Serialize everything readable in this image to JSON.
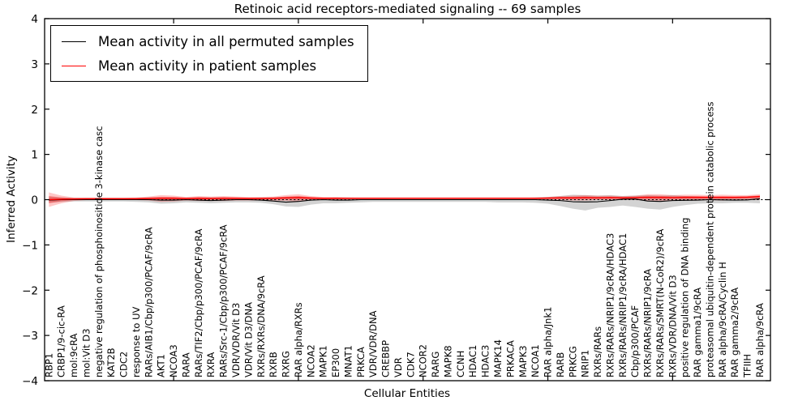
{
  "figure": {
    "title": "Retinoic acid receptors-mediated signaling -- 69 samples",
    "xlabel": "Cellular Entities",
    "ylabel": "Inferred Activity"
  },
  "legend": {
    "entries": [
      {
        "label": "Mean activity in all permuted samples",
        "color": "#000000"
      },
      {
        "label": "Mean activity in patient samples",
        "color": "#ff0000"
      }
    ]
  },
  "chart_data": {
    "type": "line",
    "title": "Retinoic acid receptors-mediated signaling -- 69 samples",
    "xlabel": "Cellular Entities",
    "ylabel": "Inferred Activity",
    "ylim": [
      -4,
      4
    ],
    "yticks": [
      -4,
      -3,
      -2,
      -1,
      0,
      1,
      2,
      3,
      4
    ],
    "ytick_labels": [
      "−4",
      "−3",
      "−2",
      "−1",
      "0",
      "1",
      "2",
      "3",
      "4"
    ],
    "x_major_tick_indices": [
      10,
      20,
      30,
      40,
      50
    ],
    "grid": false,
    "legend_position": "upper left",
    "zero_line": {
      "style": "dashed",
      "color": "#000000",
      "y": 0
    },
    "colors": {
      "permuted_line": "#000000",
      "patient_line": "#ff0000",
      "permuted_band": "rgba(128,128,128,0.35)",
      "patient_band": "rgba(255,0,0,0.22)",
      "patient_band_inner": "rgba(255,0,0,0.30)"
    },
    "categories": [
      "RBP1",
      "CRBP1/9-cic-RA",
      "mol:9cRA",
      "mol:Vit D3",
      "negative regulation of phosphoinositide 3-kinase casc",
      "KAT2B",
      "CDC2",
      "response to UV",
      "RARs/AIB1/Cbp/p300/PCAF/9cRA",
      "AKT1",
      "NCOA3",
      "RARA",
      "RARs/TIF2/Cbp/p300/PCAF/9cRA",
      "RXRA",
      "RARs/Src-1/Cbp/p300/PCAF/9cRA",
      "VDR/VDR/Vit D3",
      "VDR/Vit D3/DNA",
      "RXRs/RXRs/DNA/9cRA",
      "RXRB",
      "RXRG",
      "RAR alpha/RXRs",
      "NCOA2",
      "MAPK1",
      "EP300",
      "MNAT1",
      "PRKCA",
      "VDR/VDR/DNA",
      "CREBBP",
      "VDR",
      "CDK7",
      "NCOR2",
      "RARG",
      "MAPK8",
      "CCNH",
      "HDAC1",
      "HDAC3",
      "MAPK14",
      "PRKACA",
      "MAPK3",
      "NCOA1",
      "RAR alpha/Jnk1",
      "RARB",
      "PRKCG",
      "NRIP1",
      "RXRs/RARs",
      "RXRs/RARs/NRIP1/9cRA/HDAC3",
      "RXRs/RARs/NRIP1/9cRA/HDAC1",
      "Cbp/p300/PCAF",
      "RXRs/RARs/NRIP1/9cRA",
      "RXRs/RARs/SMRT(N-CoR2)/9cRA",
      "RXRs/VDR/DNA/Vit D3",
      "positive regulation of DNA binding",
      "RAR gamma1/9cRA",
      "proteasomal ubiquitin-dependent protein catabolic process",
      "RAR alpha/9cRA/Cyclin H",
      "RAR gamma2/9cRA",
      "TFIIH",
      "RAR alpha/9cRA"
    ],
    "series": [
      {
        "name": "Mean activity in all permuted samples",
        "color": "#000000",
        "values": [
          -0.01,
          0,
          0,
          0,
          0,
          0,
          0,
          0,
          0,
          -0.01,
          -0.01,
          0,
          -0.01,
          -0.02,
          -0.01,
          0,
          0,
          -0.01,
          -0.03,
          -0.055,
          -0.04,
          -0.01,
          0,
          -0.01,
          -0.01,
          0,
          0,
          0,
          0,
          0,
          0,
          0,
          0,
          0,
          0,
          0,
          0,
          0,
          0,
          0,
          -0.01,
          -0.02,
          -0.045,
          -0.05,
          -0.045,
          -0.02,
          0.01,
          0.015,
          -0.03,
          -0.04,
          -0.02,
          -0.015,
          -0.01,
          0,
          -0.005,
          -0.01,
          -0.005,
          0.02
        ]
      },
      {
        "name": "Mean activity in patient samples",
        "color": "#ff0000",
        "values": [
          0,
          0.01,
          0.015,
          0.02,
          0.02,
          0.02,
          0.02,
          0.02,
          0.025,
          0.03,
          0.03,
          0.025,
          0.03,
          0.025,
          0.03,
          0.03,
          0.025,
          0.025,
          0.03,
          0.04,
          0.045,
          0.035,
          0.03,
          0.03,
          0.03,
          0.03,
          0.03,
          0.03,
          0.03,
          0.03,
          0.03,
          0.03,
          0.03,
          0.03,
          0.03,
          0.03,
          0.03,
          0.03,
          0.03,
          0.03,
          0.035,
          0.04,
          0.04,
          0.045,
          0.04,
          0.045,
          0.04,
          0.045,
          0.05,
          0.05,
          0.045,
          0.05,
          0.05,
          0.05,
          0.05,
          0.05,
          0.055,
          0.07
        ]
      }
    ],
    "bands": [
      {
        "name": "permuted-range",
        "upper": [
          0.07,
          0.05,
          0.04,
          0.04,
          0.04,
          0.04,
          0.04,
          0.04,
          0.05,
          0.05,
          0.05,
          0.04,
          0.05,
          0.05,
          0.05,
          0.04,
          0.04,
          0.05,
          0.05,
          0.06,
          0.07,
          0.05,
          0.04,
          0.05,
          0.05,
          0.04,
          0.04,
          0.04,
          0.04,
          0.04,
          0.04,
          0.04,
          0.04,
          0.04,
          0.04,
          0.04,
          0.04,
          0.04,
          0.04,
          0.05,
          0.06,
          0.08,
          0.11,
          0.1,
          0.09,
          0.1,
          0.08,
          0.09,
          0.1,
          0.09,
          0.1,
          0.08,
          0.07,
          0.06,
          0.06,
          0.05,
          0.05,
          0.06
        ],
        "lower": [
          -0.07,
          -0.05,
          -0.04,
          -0.04,
          -0.04,
          -0.04,
          -0.04,
          -0.05,
          -0.06,
          -0.09,
          -0.08,
          -0.06,
          -0.07,
          -0.08,
          -0.07,
          -0.06,
          -0.06,
          -0.07,
          -0.1,
          -0.15,
          -0.16,
          -0.11,
          -0.08,
          -0.08,
          -0.07,
          -0.06,
          -0.05,
          -0.05,
          -0.05,
          -0.05,
          -0.05,
          -0.05,
          -0.05,
          -0.05,
          -0.05,
          -0.05,
          -0.06,
          -0.06,
          -0.06,
          -0.07,
          -0.09,
          -0.14,
          -0.2,
          -0.24,
          -0.18,
          -0.16,
          -0.13,
          -0.16,
          -0.2,
          -0.22,
          -0.16,
          -0.12,
          -0.09,
          -0.08,
          -0.08,
          -0.07,
          -0.07,
          -0.08
        ]
      },
      {
        "name": "patient-range",
        "upper": [
          0.16,
          0.09,
          0.05,
          0.04,
          0.04,
          0.04,
          0.04,
          0.05,
          0.07,
          0.1,
          0.09,
          0.06,
          0.08,
          0.07,
          0.08,
          0.07,
          0.06,
          0.06,
          0.07,
          0.1,
          0.12,
          0.08,
          0.06,
          0.06,
          0.05,
          0.05,
          0.05,
          0.05,
          0.05,
          0.05,
          0.05,
          0.05,
          0.05,
          0.05,
          0.05,
          0.05,
          0.05,
          0.05,
          0.05,
          0.05,
          0.06,
          0.08,
          0.09,
          0.1,
          0.09,
          0.09,
          0.08,
          0.09,
          0.12,
          0.12,
          0.1,
          0.11,
          0.11,
          0.1,
          0.11,
          0.1,
          0.1,
          0.12
        ],
        "lower": [
          -0.16,
          -0.08,
          -0.03,
          -0.01,
          -0.01,
          -0.01,
          -0.01,
          -0.01,
          -0.02,
          -0.05,
          -0.04,
          -0.02,
          -0.03,
          -0.03,
          -0.03,
          -0.02,
          -0.02,
          -0.02,
          -0.02,
          -0.03,
          -0.04,
          -0.02,
          -0.01,
          -0.01,
          0,
          0,
          0,
          0,
          0.01,
          0.01,
          0.01,
          0.01,
          0.01,
          0.01,
          0.01,
          0.01,
          0.01,
          0.01,
          0.01,
          0,
          0,
          -0.01,
          -0.02,
          -0.02,
          -0.01,
          -0.01,
          -0.01,
          -0.01,
          -0.02,
          -0.03,
          -0.02,
          -0.02,
          -0.02,
          -0.01,
          -0.02,
          -0.01,
          -0.01,
          -0.01
        ]
      }
    ]
  }
}
